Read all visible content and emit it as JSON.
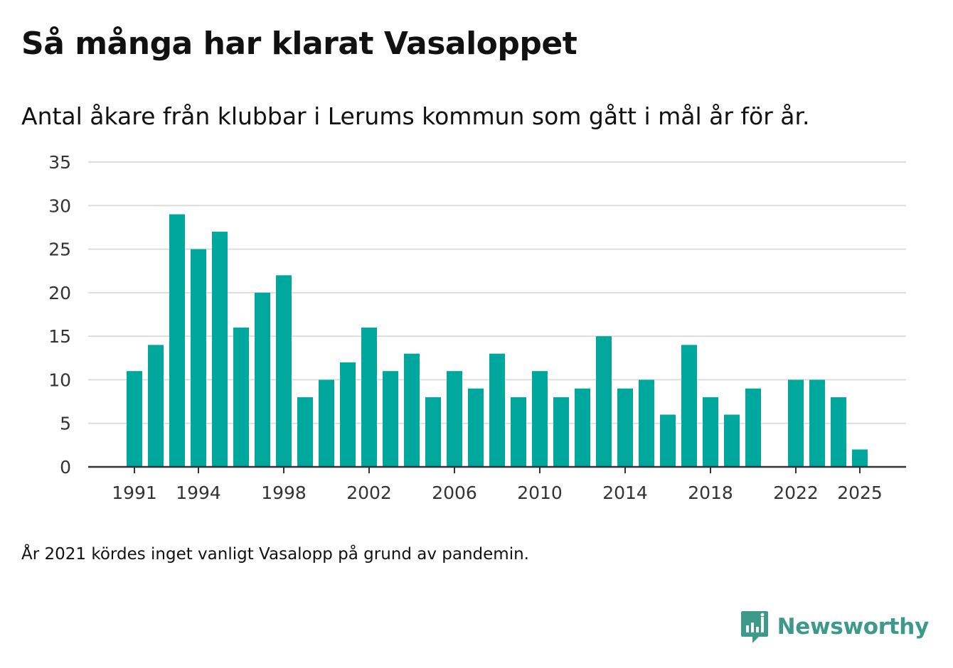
{
  "title": "Så många har klarat Vasaloppet",
  "subtitle": "Antal åkare från klubbar i Lerums kommun som gått i mål år för år.",
  "footnote": "År 2021 kördes inget vanligt Vasalopp på grund av pandemin.",
  "brand": {
    "name": "Newsworthy",
    "icon": "newsworthy-logo-icon"
  },
  "colors": {
    "bar": "#00a79d",
    "grid": "#dddddd",
    "axis": "#333333",
    "brand": "#3d9a8b"
  },
  "chart_data": {
    "type": "bar",
    "title": "Så många har klarat Vasaloppet",
    "xlabel": "",
    "ylabel": "",
    "ylim": [
      0,
      35
    ],
    "yticks": [
      0,
      5,
      10,
      15,
      20,
      25,
      30,
      35
    ],
    "xticks": [
      "1991",
      "1994",
      "1998",
      "2002",
      "2006",
      "2010",
      "2014",
      "2018",
      "2022",
      "2025"
    ],
    "grid": true,
    "categories": [
      "1991",
      "1992",
      "1993",
      "1994",
      "1995",
      "1996",
      "1997",
      "1998",
      "1999",
      "2000",
      "2001",
      "2002",
      "2003",
      "2004",
      "2005",
      "2006",
      "2007",
      "2008",
      "2009",
      "2010",
      "2011",
      "2012",
      "2013",
      "2014",
      "2015",
      "2016",
      "2017",
      "2018",
      "2019",
      "2020",
      "2021",
      "2022",
      "2023",
      "2024",
      "2025"
    ],
    "values": [
      11,
      14,
      29,
      25,
      27,
      16,
      20,
      22,
      8,
      10,
      12,
      16,
      11,
      13,
      8,
      11,
      9,
      13,
      8,
      11,
      8,
      9,
      15,
      9,
      10,
      6,
      14,
      8,
      6,
      9,
      null,
      10,
      10,
      8,
      2
    ]
  }
}
